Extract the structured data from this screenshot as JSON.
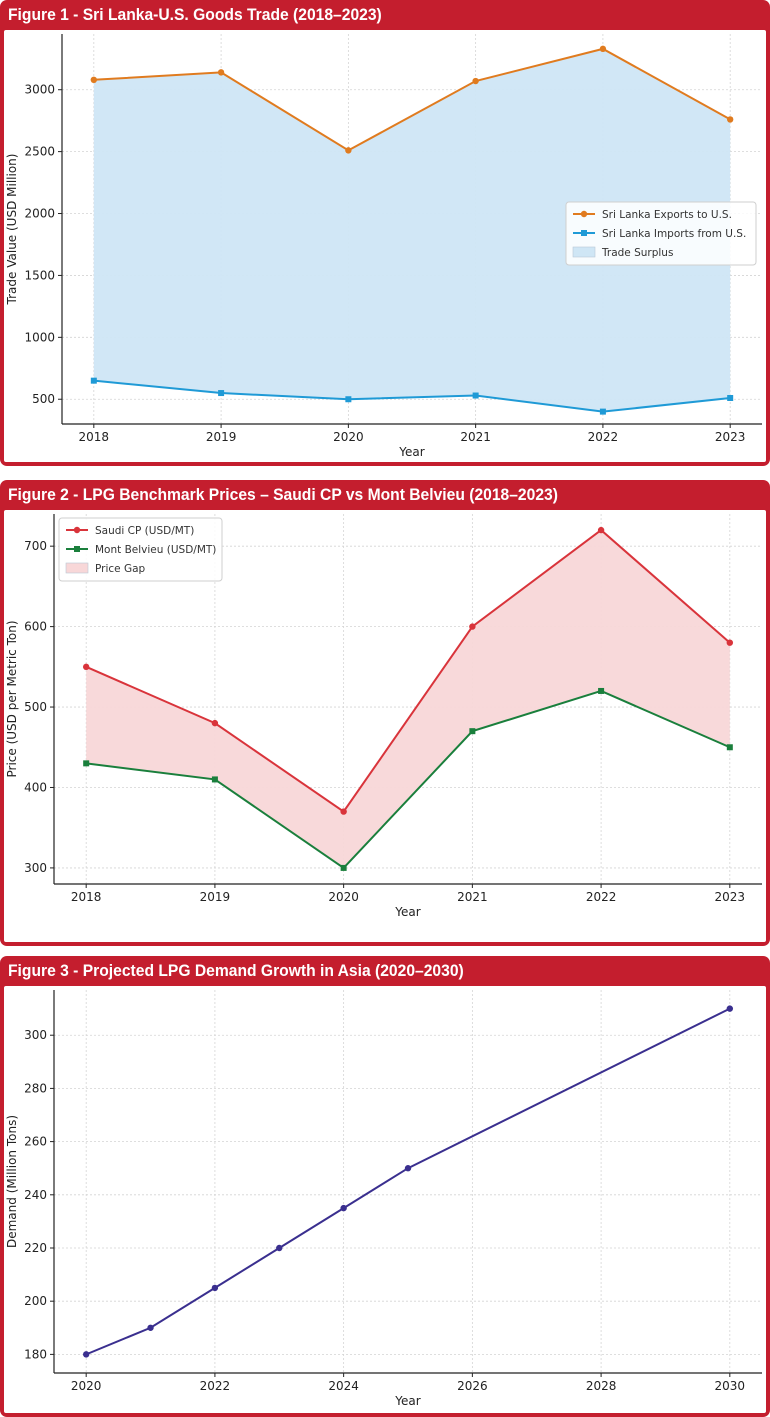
{
  "figures": [
    {
      "title": "Figure 1 - Sri Lanka-U.S. Goods Trade (2018–2023)"
    },
    {
      "title": "Figure 2 - LPG Benchmark Prices – Saudi CP vs Mont Belvieu (2018–2023)"
    },
    {
      "title": "Figure 3 - Projected LPG Demand Growth in Asia (2020–2030)"
    }
  ],
  "chart_data": [
    {
      "type": "line",
      "title": "Figure 1 - Sri Lanka-U.S. Goods Trade (2018–2023)",
      "xlabel": "Year",
      "ylabel": "Trade Value (USD Million)",
      "x": [
        2018,
        2019,
        2020,
        2021,
        2022,
        2023
      ],
      "xlim": [
        2017.75,
        2023.25
      ],
      "ylim": [
        300,
        3450
      ],
      "yticks": [
        500,
        1000,
        1500,
        2000,
        2500,
        3000
      ],
      "grid": true,
      "legend_position": "center-right",
      "series": [
        {
          "name": "Sri Lanka Exports to U.S.",
          "values": [
            3080,
            3140,
            2510,
            3070,
            3330,
            2760
          ],
          "color": "#e07b1f",
          "marker": "circle"
        },
        {
          "name": "Sri Lanka Imports from U.S.",
          "values": [
            650,
            550,
            500,
            530,
            400,
            510
          ],
          "color": "#1f9ad6",
          "marker": "square"
        }
      ],
      "fill": {
        "name": "Trade Surplus",
        "between": [
          "Sri Lanka Exports to U.S.",
          "Sri Lanka Imports from U.S."
        ],
        "color": "#cfe6f5"
      }
    },
    {
      "type": "line",
      "title": "Figure 2 - LPG Benchmark Prices – Saudi CP vs Mont Belvieu (2018–2023)",
      "xlabel": "Year",
      "ylabel": "Price (USD per Metric Ton)",
      "x": [
        2018,
        2019,
        2020,
        2021,
        2022,
        2023
      ],
      "xlim": [
        2017.75,
        2023.25
      ],
      "ylim": [
        280,
        740
      ],
      "yticks": [
        300,
        400,
        500,
        600,
        700
      ],
      "grid": true,
      "legend_position": "top-left",
      "series": [
        {
          "name": "Saudi CP (USD/MT)",
          "values": [
            550,
            480,
            370,
            600,
            720,
            580
          ],
          "color": "#d9343b",
          "marker": "circle"
        },
        {
          "name": "Mont Belvieu (USD/MT)",
          "values": [
            430,
            410,
            300,
            470,
            520,
            450
          ],
          "color": "#1a7f3c",
          "marker": "square"
        }
      ],
      "fill": {
        "name": "Price Gap",
        "between": [
          "Saudi CP (USD/MT)",
          "Mont Belvieu (USD/MT)"
        ],
        "color": "#f8d7d8"
      }
    },
    {
      "type": "line",
      "title": "Figure 3 - Projected LPG Demand Growth in Asia (2020–2030)",
      "xlabel": "Year",
      "ylabel": "Demand (Million Tons)",
      "x": [
        2020,
        2021,
        2022,
        2023,
        2024,
        2025,
        2030
      ],
      "xticks": [
        2020,
        2022,
        2024,
        2026,
        2028,
        2030
      ],
      "xlim": [
        2019.5,
        2030.5
      ],
      "ylim": [
        173,
        317
      ],
      "yticks": [
        180,
        200,
        220,
        240,
        260,
        280,
        300
      ],
      "grid": true,
      "series": [
        {
          "name": "Demand",
          "values": [
            180,
            190,
            205,
            220,
            235,
            250,
            310
          ],
          "color": "#3a2f8f",
          "marker": "circle"
        }
      ]
    }
  ]
}
